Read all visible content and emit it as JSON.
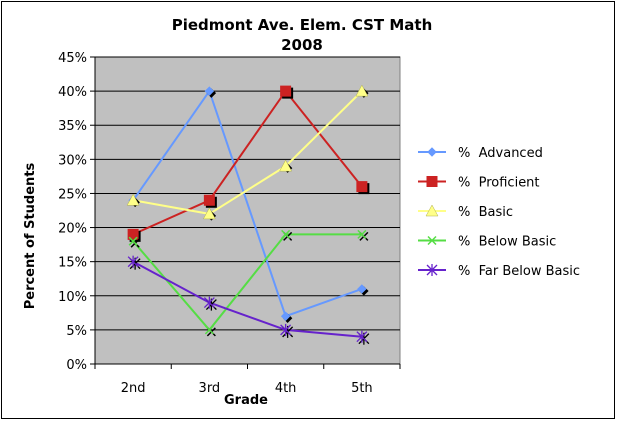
{
  "chart_data": {
    "type": "line",
    "title_line1": "Piedmont Ave. Elem. CST Math",
    "title_line2": "2008",
    "xlabel": "Grade",
    "ylabel": "Percent  of Students",
    "categories": [
      "2nd",
      "3rd",
      "4th",
      "5th"
    ],
    "ylim": [
      0,
      45
    ],
    "ytick_labels": [
      "0%",
      "5%",
      "10%",
      "15%",
      "20%",
      "25%",
      "30%",
      "35%",
      "40%",
      "45%"
    ],
    "grid": true,
    "legend_position": "right",
    "series": [
      {
        "name": "%  Advanced",
        "values": [
          24,
          40,
          7,
          11
        ],
        "color": "#6699ff",
        "marker": "diamond"
      },
      {
        "name": "%  Proficient",
        "values": [
          19,
          24,
          40,
          26
        ],
        "color": "#cc2222",
        "marker": "square"
      },
      {
        "name": "%  Basic",
        "values": [
          24,
          22,
          29,
          40
        ],
        "color": "#ffff88",
        "marker": "triangle"
      },
      {
        "name": "%  Below Basic",
        "values": [
          18,
          5,
          19,
          19
        ],
        "color": "#55dd44",
        "marker": "x"
      },
      {
        "name": "%  Far Below Basic",
        "values": [
          15,
          9,
          5,
          4
        ],
        "color": "#6622cc",
        "marker": "star"
      }
    ],
    "plot_background": "#c0c0c0"
  }
}
